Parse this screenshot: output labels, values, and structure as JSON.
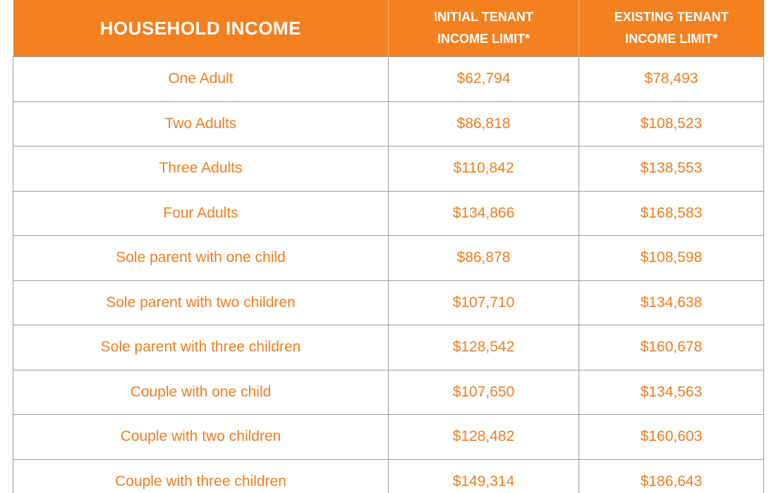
{
  "table": {
    "header": [
      "HOUSEHOLD INCOME",
      "INITIAL TENANT INCOME LIMIT*",
      "EXISTING TENANT INCOME LIMIT*"
    ],
    "rows": [
      [
        "One Adult",
        "$62,794",
        "$78,493"
      ],
      [
        "Two Adults",
        "$86,818",
        "$108,523"
      ],
      [
        "Three Adults",
        "$110,842",
        "$138,553"
      ],
      [
        "Four Adults",
        "$134,866",
        "$168,583"
      ],
      [
        "Sole parent with one child",
        "$86,878",
        "$108,598"
      ],
      [
        "Sole parent with two children",
        "$107,710",
        "$134,638"
      ],
      [
        "Sole parent with three children",
        "$128,542",
        "$160,678"
      ],
      [
        "Couple with one child",
        "$107,650",
        "$134,563"
      ],
      [
        "Couple with two children",
        "$128,482",
        "$160,603"
      ],
      [
        "Couple with three children",
        "$149,314",
        "$186,643"
      ]
    ]
  }
}
